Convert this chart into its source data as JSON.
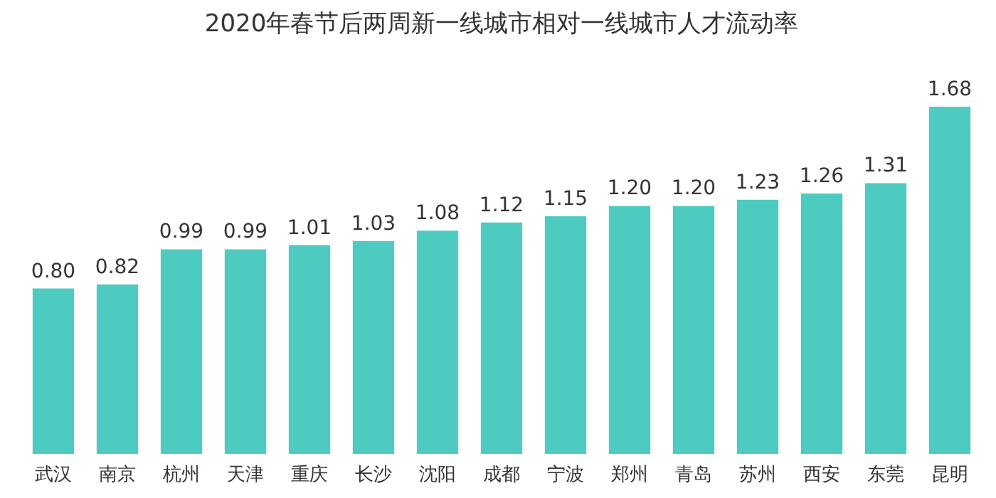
{
  "chart_data": {
    "type": "bar",
    "title": "2020年春节后两周新一线城市相对一线城市人才流动率",
    "categories": [
      "武汉",
      "南京",
      "杭州",
      "天津",
      "重庆",
      "长沙",
      "沈阳",
      "成都",
      "宁波",
      "郑州",
      "青岛",
      "苏州",
      "西安",
      "东莞",
      "昆明"
    ],
    "values": [
      0.8,
      0.82,
      0.99,
      0.99,
      1.01,
      1.03,
      1.08,
      1.12,
      1.15,
      1.2,
      1.2,
      1.23,
      1.26,
      1.31,
      1.68
    ],
    "value_labels": [
      "0.80",
      "0.82",
      "0.99",
      "0.99",
      "1.01",
      "1.03",
      "1.08",
      "1.12",
      "1.15",
      "1.20",
      "1.20",
      "1.23",
      "1.26",
      "1.31",
      "1.68"
    ],
    "color": "#4ecbc0"
  }
}
